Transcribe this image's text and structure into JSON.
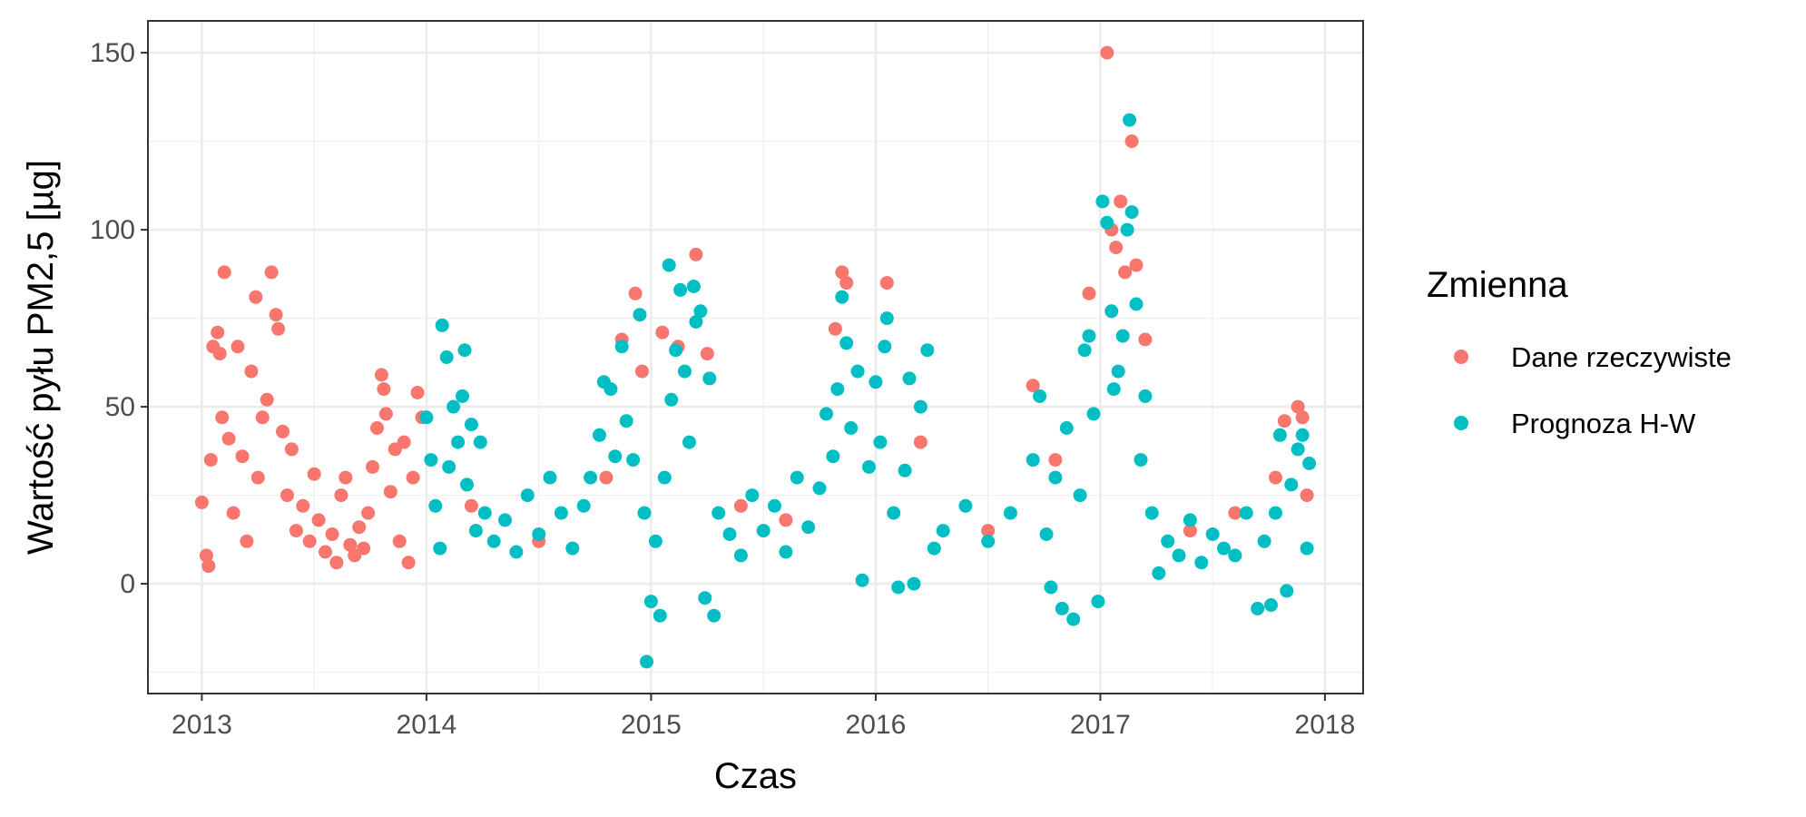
{
  "chart_data": {
    "type": "scatter",
    "xlabel": "Czas",
    "ylabel": "Wartość pyłu PM2,5 [µg]",
    "xlim": [
      2012.76,
      2018.17
    ],
    "ylim": [
      -31,
      159
    ],
    "x_ticks": [
      2013,
      2014,
      2015,
      2016,
      2017,
      2018
    ],
    "x_tick_labels": [
      "2013",
      "2014",
      "2015",
      "2016",
      "2017",
      "2018"
    ],
    "y_ticks": [
      0,
      50,
      100,
      150
    ],
    "y_tick_labels": [
      "0",
      "50",
      "100",
      "150"
    ],
    "grid": true,
    "legend": {
      "title": "Zmienna",
      "position": "right"
    },
    "series": [
      {
        "name": "Dane rzeczywiste",
        "color": "#F8766D",
        "points": [
          [
            2013.0,
            23
          ],
          [
            2013.02,
            8
          ],
          [
            2013.03,
            5
          ],
          [
            2013.04,
            35
          ],
          [
            2013.05,
            67
          ],
          [
            2013.07,
            71
          ],
          [
            2013.08,
            65
          ],
          [
            2013.09,
            47
          ],
          [
            2013.1,
            88
          ],
          [
            2013.12,
            41
          ],
          [
            2013.14,
            20
          ],
          [
            2013.16,
            67
          ],
          [
            2013.18,
            36
          ],
          [
            2013.2,
            12
          ],
          [
            2013.22,
            60
          ],
          [
            2013.24,
            81
          ],
          [
            2013.25,
            30
          ],
          [
            2013.27,
            47
          ],
          [
            2013.29,
            52
          ],
          [
            2013.31,
            88
          ],
          [
            2013.33,
            76
          ],
          [
            2013.34,
            72
          ],
          [
            2013.36,
            43
          ],
          [
            2013.38,
            25
          ],
          [
            2013.4,
            38
          ],
          [
            2013.42,
            15
          ],
          [
            2013.45,
            22
          ],
          [
            2013.48,
            12
          ],
          [
            2013.5,
            31
          ],
          [
            2013.52,
            18
          ],
          [
            2013.55,
            9
          ],
          [
            2013.58,
            14
          ],
          [
            2013.6,
            6
          ],
          [
            2013.62,
            25
          ],
          [
            2013.64,
            30
          ],
          [
            2013.66,
            11
          ],
          [
            2013.68,
            8
          ],
          [
            2013.7,
            16
          ],
          [
            2013.72,
            10
          ],
          [
            2013.74,
            20
          ],
          [
            2013.76,
            33
          ],
          [
            2013.78,
            44
          ],
          [
            2013.8,
            59
          ],
          [
            2013.81,
            55
          ],
          [
            2013.82,
            48
          ],
          [
            2013.84,
            26
          ],
          [
            2013.86,
            38
          ],
          [
            2013.88,
            12
          ],
          [
            2013.9,
            40
          ],
          [
            2013.92,
            6
          ],
          [
            2013.94,
            30
          ],
          [
            2013.96,
            54
          ],
          [
            2013.98,
            47
          ],
          [
            2014.2,
            22
          ],
          [
            2014.5,
            12
          ],
          [
            2014.8,
            30
          ],
          [
            2014.87,
            69
          ],
          [
            2014.93,
            82
          ],
          [
            2014.96,
            60
          ],
          [
            2015.05,
            71
          ],
          [
            2015.12,
            67
          ],
          [
            2015.2,
            93
          ],
          [
            2015.25,
            65
          ],
          [
            2015.4,
            22
          ],
          [
            2015.6,
            18
          ],
          [
            2015.82,
            72
          ],
          [
            2015.85,
            88
          ],
          [
            2015.87,
            85
          ],
          [
            2016.05,
            85
          ],
          [
            2016.2,
            40
          ],
          [
            2016.5,
            15
          ],
          [
            2016.7,
            56
          ],
          [
            2016.8,
            35
          ],
          [
            2016.95,
            82
          ],
          [
            2017.03,
            150
          ],
          [
            2017.05,
            100
          ],
          [
            2017.07,
            95
          ],
          [
            2017.09,
            108
          ],
          [
            2017.11,
            88
          ],
          [
            2017.14,
            125
          ],
          [
            2017.16,
            90
          ],
          [
            2017.2,
            69
          ],
          [
            2017.4,
            15
          ],
          [
            2017.6,
            20
          ],
          [
            2017.78,
            30
          ],
          [
            2017.82,
            46
          ],
          [
            2017.88,
            50
          ],
          [
            2017.9,
            47
          ],
          [
            2017.92,
            25
          ]
        ]
      },
      {
        "name": "Prognoza H-W",
        "color": "#00BFC4",
        "points": [
          [
            2014.0,
            47
          ],
          [
            2014.02,
            35
          ],
          [
            2014.04,
            22
          ],
          [
            2014.06,
            10
          ],
          [
            2014.07,
            73
          ],
          [
            2014.09,
            64
          ],
          [
            2014.1,
            33
          ],
          [
            2014.12,
            50
          ],
          [
            2014.14,
            40
          ],
          [
            2014.16,
            53
          ],
          [
            2014.17,
            66
          ],
          [
            2014.18,
            28
          ],
          [
            2014.2,
            45
          ],
          [
            2014.22,
            15
          ],
          [
            2014.24,
            40
          ],
          [
            2014.26,
            20
          ],
          [
            2014.3,
            12
          ],
          [
            2014.35,
            18
          ],
          [
            2014.4,
            9
          ],
          [
            2014.45,
            25
          ],
          [
            2014.5,
            14
          ],
          [
            2014.55,
            30
          ],
          [
            2014.6,
            20
          ],
          [
            2014.65,
            10
          ],
          [
            2014.7,
            22
          ],
          [
            2014.73,
            30
          ],
          [
            2014.77,
            42
          ],
          [
            2014.79,
            57
          ],
          [
            2014.82,
            55
          ],
          [
            2014.84,
            36
          ],
          [
            2014.87,
            67
          ],
          [
            2014.89,
            46
          ],
          [
            2014.92,
            35
          ],
          [
            2014.95,
            76
          ],
          [
            2014.97,
            20
          ],
          [
            2014.98,
            -22
          ],
          [
            2015.0,
            -5
          ],
          [
            2015.02,
            12
          ],
          [
            2015.04,
            -9
          ],
          [
            2015.06,
            30
          ],
          [
            2015.08,
            90
          ],
          [
            2015.09,
            52
          ],
          [
            2015.11,
            66
          ],
          [
            2015.13,
            83
          ],
          [
            2015.15,
            60
          ],
          [
            2015.17,
            40
          ],
          [
            2015.19,
            84
          ],
          [
            2015.2,
            74
          ],
          [
            2015.22,
            77
          ],
          [
            2015.24,
            -4
          ],
          [
            2015.26,
            58
          ],
          [
            2015.28,
            -9
          ],
          [
            2015.3,
            20
          ],
          [
            2015.35,
            14
          ],
          [
            2015.4,
            8
          ],
          [
            2015.45,
            25
          ],
          [
            2015.5,
            15
          ],
          [
            2015.55,
            22
          ],
          [
            2015.6,
            9
          ],
          [
            2015.65,
            30
          ],
          [
            2015.7,
            16
          ],
          [
            2015.75,
            27
          ],
          [
            2015.78,
            48
          ],
          [
            2015.81,
            36
          ],
          [
            2015.83,
            55
          ],
          [
            2015.85,
            81
          ],
          [
            2015.87,
            68
          ],
          [
            2015.89,
            44
          ],
          [
            2015.92,
            60
          ],
          [
            2015.94,
            1
          ],
          [
            2015.97,
            33
          ],
          [
            2016.0,
            57
          ],
          [
            2016.02,
            40
          ],
          [
            2016.04,
            67
          ],
          [
            2016.05,
            75
          ],
          [
            2016.08,
            20
          ],
          [
            2016.1,
            -1
          ],
          [
            2016.13,
            32
          ],
          [
            2016.15,
            58
          ],
          [
            2016.17,
            0
          ],
          [
            2016.2,
            50
          ],
          [
            2016.23,
            66
          ],
          [
            2016.26,
            10
          ],
          [
            2016.3,
            15
          ],
          [
            2016.4,
            22
          ],
          [
            2016.5,
            12
          ],
          [
            2016.6,
            20
          ],
          [
            2016.7,
            35
          ],
          [
            2016.73,
            53
          ],
          [
            2016.76,
            14
          ],
          [
            2016.78,
            -1
          ],
          [
            2016.8,
            30
          ],
          [
            2016.83,
            -7
          ],
          [
            2016.85,
            44
          ],
          [
            2016.88,
            -10
          ],
          [
            2016.91,
            25
          ],
          [
            2016.93,
            66
          ],
          [
            2016.95,
            70
          ],
          [
            2016.97,
            48
          ],
          [
            2016.99,
            -5
          ],
          [
            2017.01,
            108
          ],
          [
            2017.03,
            102
          ],
          [
            2017.05,
            77
          ],
          [
            2017.06,
            55
          ],
          [
            2017.08,
            60
          ],
          [
            2017.1,
            70
          ],
          [
            2017.12,
            100
          ],
          [
            2017.13,
            131
          ],
          [
            2017.14,
            105
          ],
          [
            2017.16,
            79
          ],
          [
            2017.18,
            35
          ],
          [
            2017.2,
            53
          ],
          [
            2017.23,
            20
          ],
          [
            2017.26,
            3
          ],
          [
            2017.3,
            12
          ],
          [
            2017.35,
            8
          ],
          [
            2017.4,
            18
          ],
          [
            2017.45,
            6
          ],
          [
            2017.5,
            14
          ],
          [
            2017.55,
            10
          ],
          [
            2017.6,
            8
          ],
          [
            2017.65,
            20
          ],
          [
            2017.7,
            -7
          ],
          [
            2017.73,
            12
          ],
          [
            2017.76,
            -6
          ],
          [
            2017.78,
            20
          ],
          [
            2017.8,
            42
          ],
          [
            2017.83,
            -2
          ],
          [
            2017.85,
            28
          ],
          [
            2017.88,
            38
          ],
          [
            2017.9,
            42
          ],
          [
            2017.92,
            10
          ],
          [
            2017.93,
            34
          ]
        ]
      }
    ]
  }
}
